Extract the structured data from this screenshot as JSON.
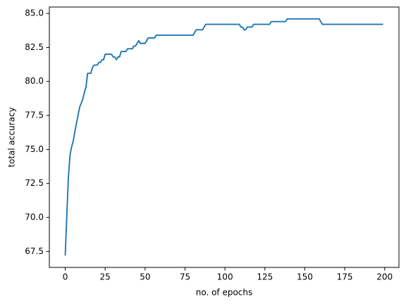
{
  "chart_data": {
    "type": "line",
    "xlabel": "no. of epochs",
    "ylabel": "total accuracy",
    "x": [
      0,
      1,
      2,
      3,
      4,
      5,
      6,
      7,
      8,
      9,
      10,
      11,
      12,
      13,
      14,
      15,
      16,
      17,
      18,
      19,
      20,
      21,
      22,
      23,
      24,
      25,
      26,
      27,
      28,
      29,
      30,
      31,
      32,
      33,
      34,
      35,
      36,
      37,
      38,
      39,
      40,
      41,
      42,
      43,
      44,
      45,
      46,
      47,
      48,
      49,
      50,
      51,
      52,
      53,
      54,
      55,
      56,
      57,
      58,
      59,
      60,
      61,
      62,
      63,
      64,
      65,
      66,
      67,
      68,
      69,
      70,
      71,
      72,
      73,
      74,
      75,
      76,
      77,
      78,
      79,
      80,
      81,
      82,
      83,
      84,
      85,
      86,
      87,
      88,
      89,
      90,
      91,
      92,
      93,
      94,
      95,
      96,
      97,
      98,
      99,
      100,
      101,
      102,
      103,
      104,
      105,
      106,
      107,
      108,
      109,
      110,
      111,
      112,
      113,
      114,
      115,
      116,
      117,
      118,
      119,
      120,
      121,
      122,
      123,
      124,
      125,
      126,
      127,
      128,
      129,
      130,
      131,
      132,
      133,
      134,
      135,
      136,
      137,
      138,
      139,
      140,
      141,
      142,
      143,
      144,
      145,
      146,
      147,
      148,
      149,
      150,
      151,
      152,
      153,
      154,
      155,
      156,
      157,
      158,
      159,
      160,
      161,
      162,
      163,
      164,
      165,
      166,
      167,
      168,
      169,
      170,
      171,
      172,
      173,
      174,
      175,
      176,
      177,
      178,
      179,
      180,
      181,
      182,
      183,
      184,
      185,
      186,
      187,
      188,
      189,
      190,
      191,
      192,
      193,
      194,
      195,
      196,
      197,
      198,
      199
    ],
    "series": [
      {
        "color": "#1f77b4",
        "values": [
          67.2,
          70.2,
          73.0,
          74.6,
          75.2,
          75.6,
          76.3,
          76.9,
          77.5,
          78.1,
          78.4,
          78.7,
          79.2,
          79.6,
          80.6,
          80.6,
          80.6,
          81.0,
          81.2,
          81.2,
          81.2,
          81.4,
          81.4,
          81.6,
          81.6,
          82.0,
          82.0,
          82.0,
          82.0,
          82.0,
          81.8,
          81.8,
          81.6,
          81.8,
          81.8,
          82.2,
          82.2,
          82.2,
          82.2,
          82.4,
          82.4,
          82.4,
          82.4,
          82.6,
          82.6,
          82.8,
          83.0,
          82.8,
          82.8,
          82.8,
          82.8,
          83.0,
          83.2,
          83.2,
          83.2,
          83.2,
          83.2,
          83.4,
          83.4,
          83.4,
          83.4,
          83.4,
          83.4,
          83.4,
          83.4,
          83.4,
          83.4,
          83.4,
          83.4,
          83.4,
          83.4,
          83.4,
          83.4,
          83.4,
          83.4,
          83.4,
          83.4,
          83.4,
          83.4,
          83.4,
          83.4,
          83.6,
          83.8,
          83.8,
          83.8,
          83.8,
          83.8,
          84.0,
          84.2,
          84.2,
          84.2,
          84.2,
          84.2,
          84.2,
          84.2,
          84.2,
          84.2,
          84.2,
          84.2,
          84.2,
          84.2,
          84.2,
          84.2,
          84.2,
          84.2,
          84.2,
          84.2,
          84.2,
          84.2,
          84.2,
          84.0,
          84.0,
          83.8,
          83.8,
          84.0,
          84.0,
          84.0,
          84.0,
          84.2,
          84.2,
          84.2,
          84.2,
          84.2,
          84.2,
          84.2,
          84.2,
          84.2,
          84.2,
          84.2,
          84.4,
          84.4,
          84.4,
          84.4,
          84.4,
          84.4,
          84.4,
          84.4,
          84.4,
          84.4,
          84.6,
          84.6,
          84.6,
          84.6,
          84.6,
          84.6,
          84.6,
          84.6,
          84.6,
          84.6,
          84.6,
          84.6,
          84.6,
          84.6,
          84.6,
          84.6,
          84.6,
          84.6,
          84.6,
          84.6,
          84.6,
          84.4,
          84.2,
          84.2,
          84.2,
          84.2,
          84.2,
          84.2,
          84.2,
          84.2,
          84.2,
          84.2,
          84.2,
          84.2,
          84.2,
          84.2,
          84.2,
          84.2,
          84.2,
          84.2,
          84.2,
          84.2,
          84.2,
          84.2,
          84.2,
          84.2,
          84.2,
          84.2,
          84.2,
          84.2,
          84.2,
          84.2,
          84.2,
          84.2,
          84.2,
          84.2,
          84.2,
          84.2,
          84.2,
          84.2,
          84.2
        ]
      }
    ],
    "xlim": [
      -9.95,
      208.95
    ],
    "xticks": [
      0,
      25,
      50,
      75,
      100,
      125,
      150,
      175,
      200
    ],
    "ylim": [
      66.33,
      85.47
    ],
    "yticks": [
      67.5,
      {
        "value": 70,
        "label": "70.0"
      },
      72.5,
      {
        "value": 75,
        "label": "75.0"
      },
      77.5,
      {
        "value": 80,
        "label": "80.0"
      },
      82.5,
      {
        "value": 85,
        "label": "85.0"
      }
    ],
    "grid": false
  }
}
